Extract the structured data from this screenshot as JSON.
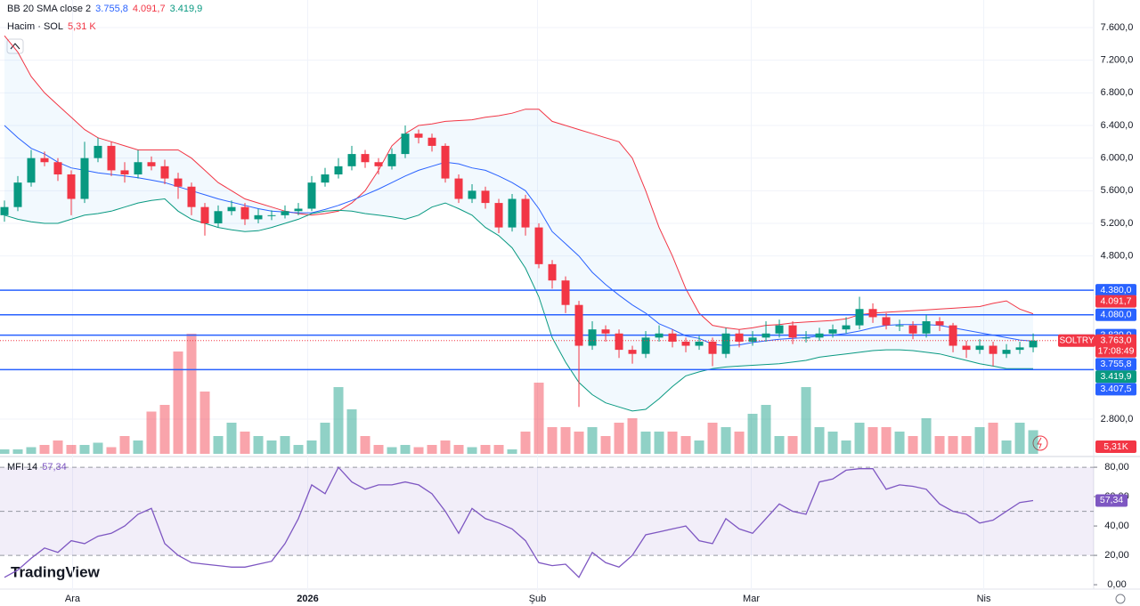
{
  "chart_data": {
    "type": "candlestick",
    "symbol": "SOLTRY",
    "countdown": "17:08:49",
    "last_price": {
      "value": 3763,
      "label": "3.763,0"
    },
    "up_color": "#089981",
    "down_color": "#f23645",
    "open": [
      5300,
      5400,
      5700,
      6000,
      5950,
      5800,
      5500,
      6000,
      6150,
      5850,
      5800,
      5950,
      5900,
      5750,
      5650,
      5400,
      5200,
      5350,
      5400,
      5250,
      5300,
      5300,
      5350,
      5380,
      5700,
      5800,
      5900,
      6050,
      5950,
      5900,
      6050,
      6300,
      6250,
      6150,
      5750,
      5500,
      5600,
      5450,
      5150,
      5500,
      5150,
      4700,
      4500,
      4200,
      3700,
      3900,
      3850,
      3650,
      3600,
      3800,
      3850,
      3750,
      3700,
      3750,
      3600,
      3850,
      3750,
      3800,
      3850,
      3950,
      3800,
      3800,
      3850,
      3900,
      3950,
      4150,
      4050,
      3950,
      3950,
      3850,
      4000,
      3950,
      3700,
      3650,
      3700,
      3600,
      3650,
      3680
    ],
    "high": [
      5480,
      5780,
      6100,
      6080,
      6000,
      5850,
      6200,
      6250,
      6200,
      5950,
      6100,
      6020,
      5980,
      5820,
      5700,
      5450,
      5420,
      5480,
      5450,
      5380,
      5360,
      5420,
      5450,
      5780,
      5880,
      6000,
      6150,
      6100,
      6000,
      6120,
      6400,
      6350,
      6300,
      6180,
      5800,
      5680,
      5650,
      5500,
      5560,
      5550,
      5200,
      4750,
      4550,
      4250,
      4000,
      3950,
      3900,
      3700,
      3880,
      3950,
      3900,
      3800,
      3820,
      3800,
      3920,
      3900,
      3880,
      4000,
      4020,
      4000,
      3880,
      3920,
      3960,
      4050,
      4300,
      4220,
      4100,
      4020,
      4000,
      4080,
      4050,
      3980,
      3760,
      3780,
      3750,
      3720,
      3750,
      3850
    ],
    "low": [
      5220,
      5350,
      5650,
      5900,
      5720,
      5300,
      5450,
      5950,
      5780,
      5700,
      5750,
      5850,
      5680,
      5500,
      5300,
      5050,
      5150,
      5300,
      5180,
      5200,
      5240,
      5260,
      5300,
      5350,
      5650,
      5750,
      5850,
      5880,
      5800,
      5860,
      6000,
      6180,
      6080,
      5700,
      5450,
      5450,
      5380,
      5080,
      5100,
      5050,
      4650,
      4400,
      4100,
      2950,
      3650,
      3750,
      3550,
      3480,
      3550,
      3750,
      3680,
      3620,
      3650,
      3450,
      3550,
      3680,
      3700,
      3750,
      3800,
      3720,
      3740,
      3760,
      3800,
      3850,
      3900,
      3980,
      3900,
      3880,
      3780,
      3800,
      3880,
      3620,
      3550,
      3600,
      3450,
      3550,
      3600,
      3620
    ],
    "close": [
      5400,
      5700,
      6000,
      5950,
      5800,
      5500,
      6000,
      6150,
      5850,
      5800,
      5950,
      5900,
      5750,
      5650,
      5400,
      5200,
      5350,
      5400,
      5250,
      5300,
      5300,
      5350,
      5380,
      5700,
      5800,
      5900,
      6050,
      5950,
      5900,
      6050,
      6300,
      6250,
      6150,
      5750,
      5500,
      5600,
      5450,
      5150,
      5500,
      5150,
      4700,
      4500,
      4200,
      3700,
      3900,
      3850,
      3650,
      3600,
      3800,
      3850,
      3750,
      3700,
      3750,
      3600,
      3850,
      3750,
      3800,
      3850,
      3950,
      3800,
      3800,
      3850,
      3900,
      3950,
      4150,
      4050,
      3950,
      3950,
      3850,
      4000,
      3950,
      3700,
      3650,
      3700,
      3600,
      3650,
      3680,
      3763
    ],
    "ylim": [
      2375,
      7938
    ],
    "yticks": [
      {
        "value": 7600,
        "label": "7.600,0"
      },
      {
        "value": 7200,
        "label": "7.200,0"
      },
      {
        "value": 6800,
        "label": "6.800,0"
      },
      {
        "value": 6400,
        "label": "6.400,0"
      },
      {
        "value": 6000,
        "label": "6.000,0"
      },
      {
        "value": 5600,
        "label": "5.600,0"
      },
      {
        "value": 5200,
        "label": "5.200,0"
      },
      {
        "value": 4800,
        "label": "4.800,0"
      },
      {
        "value": 2800,
        "label": "2.800,0"
      }
    ],
    "xlim": [
      -0.333,
      81.53
    ],
    "xticks": [
      {
        "value": 5.1,
        "label": "Ara"
      },
      {
        "value": 22.7,
        "label": "2026"
      },
      {
        "value": 39.9,
        "label": "Şub"
      },
      {
        "value": 55.9,
        "label": "Mar"
      },
      {
        "value": 73.3,
        "label": "Nis"
      }
    ],
    "levels_color": "#2962ff",
    "levels": [
      {
        "value": 4380,
        "label": "4.380,0"
      },
      {
        "value": 4080,
        "label": "4.080,0"
      },
      {
        "value": 3830,
        "label": "3.830,0"
      },
      {
        "value": 3407.5,
        "label": "3.407,5"
      }
    ],
    "bb": {
      "title": "BB 20 SMA close 2",
      "band_fill": "rgba(33,150,243,0.06)",
      "basis": {
        "color": "#2962ff",
        "label": "3.755,8",
        "values": [
          6400,
          6250,
          6120,
          6050,
          5950,
          5880,
          5850,
          5820,
          5800,
          5780,
          5760,
          5730,
          5700,
          5650,
          5600,
          5550,
          5500,
          5460,
          5420,
          5380,
          5350,
          5340,
          5330,
          5330,
          5370,
          5420,
          5480,
          5550,
          5620,
          5700,
          5780,
          5850,
          5900,
          5950,
          5930,
          5880,
          5850,
          5780,
          5700,
          5600,
          5380,
          5100,
          4950,
          4800,
          4600,
          4450,
          4320,
          4200,
          4100,
          3970,
          3900,
          3820,
          3790,
          3720,
          3700,
          3710,
          3740,
          3760,
          3780,
          3790,
          3800,
          3820,
          3830,
          3850,
          3880,
          3920,
          3950,
          3960,
          3960,
          3960,
          3950,
          3920,
          3890,
          3860,
          3830,
          3800,
          3770,
          3755.8
        ]
      },
      "upper": {
        "color": "#f23645",
        "label": "4.091,7",
        "values": [
          7500,
          7300,
          7000,
          6800,
          6650,
          6500,
          6350,
          6250,
          6200,
          6150,
          6100,
          6100,
          6100,
          6100,
          6000,
          5850,
          5700,
          5600,
          5500,
          5450,
          5400,
          5350,
          5320,
          5300,
          5320,
          5350,
          5450,
          5600,
          5850,
          6150,
          6300,
          6400,
          6420,
          6450,
          6460,
          6470,
          6500,
          6520,
          6550,
          6600,
          6600,
          6450,
          6400,
          6350,
          6300,
          6250,
          6200,
          6000,
          5600,
          5150,
          4800,
          4400,
          4100,
          3950,
          3920,
          3900,
          3920,
          3950,
          3960,
          3980,
          3990,
          4000,
          4010,
          4030,
          4080,
          4100,
          4110,
          4120,
          4130,
          4140,
          4150,
          4160,
          4170,
          4180,
          4220,
          4250,
          4150,
          4091.7
        ]
      },
      "lower": {
        "color": "#089981",
        "label": "3.419,9",
        "values": [
          5300,
          5250,
          5220,
          5200,
          5200,
          5250,
          5300,
          5320,
          5350,
          5400,
          5450,
          5480,
          5500,
          5350,
          5250,
          5200,
          5150,
          5120,
          5100,
          5110,
          5150,
          5200,
          5250,
          5320,
          5350,
          5360,
          5350,
          5320,
          5300,
          5280,
          5250,
          5300,
          5400,
          5450,
          5380,
          5300,
          5150,
          5050,
          4900,
          4650,
          4300,
          3800,
          3500,
          3250,
          3100,
          3000,
          2950,
          2900,
          2920,
          3050,
          3200,
          3330,
          3380,
          3420,
          3440,
          3450,
          3460,
          3470,
          3480,
          3500,
          3520,
          3560,
          3580,
          3600,
          3620,
          3640,
          3650,
          3650,
          3640,
          3620,
          3600,
          3560,
          3520,
          3480,
          3450,
          3420,
          3420,
          3419.9
        ]
      }
    },
    "volume": {
      "title": "Hacim · SOL",
      "legend_label": "5,31 K",
      "axis_label": "5,31K",
      "ylim": [
        0,
        30
      ],
      "values": [
        1,
        1,
        1.5,
        2,
        3,
        2,
        2,
        2.5,
        1.5,
        4,
        3,
        9.5,
        11,
        23,
        27,
        14,
        4,
        7,
        5,
        4,
        3,
        4,
        2,
        3,
        7,
        15,
        10,
        4,
        2,
        1.5,
        2,
        1.5,
        2,
        3,
        2,
        1.5,
        2,
        2,
        1,
        5,
        16,
        6,
        6,
        5,
        6,
        4,
        7,
        8,
        5,
        5,
        5,
        4,
        3,
        7,
        6,
        5,
        9,
        11,
        4,
        4,
        15,
        6,
        5,
        3,
        7,
        6,
        6,
        5,
        4,
        8,
        4,
        4,
        4,
        6,
        7,
        3,
        7,
        5.31
      ]
    },
    "mfi": {
      "title": "MFI 14",
      "value_label": "57,34",
      "color": "#7e57c2",
      "band": [
        20,
        80
      ],
      "middle": 50,
      "ylim": [
        -4.8,
        85.5
      ],
      "yticks": [
        {
          "value": 80,
          "label": "80,00"
        },
        {
          "value": 60,
          "label": "60,00"
        },
        {
          "value": 40,
          "label": "40,00"
        },
        {
          "value": 20,
          "label": "20,00"
        },
        {
          "value": 0,
          "label": "0,00"
        }
      ],
      "values": [
        5,
        10,
        18,
        25,
        22,
        30,
        28,
        33,
        35,
        40,
        48,
        52,
        28,
        20,
        15,
        14,
        13,
        12,
        12,
        14,
        16,
        28,
        45,
        68,
        62,
        80,
        70,
        65,
        68,
        68,
        70,
        68,
        62,
        50,
        35,
        52,
        45,
        42,
        38,
        30,
        15,
        13,
        14,
        5,
        22,
        15,
        12,
        20,
        34,
        36,
        38,
        40,
        30,
        28,
        45,
        38,
        35,
        45,
        55,
        50,
        48,
        70,
        72,
        78,
        79,
        79,
        65,
        68,
        67,
        65,
        55,
        50,
        48,
        42,
        44,
        50,
        56,
        57.34
      ]
    },
    "logo": "TradingView"
  }
}
